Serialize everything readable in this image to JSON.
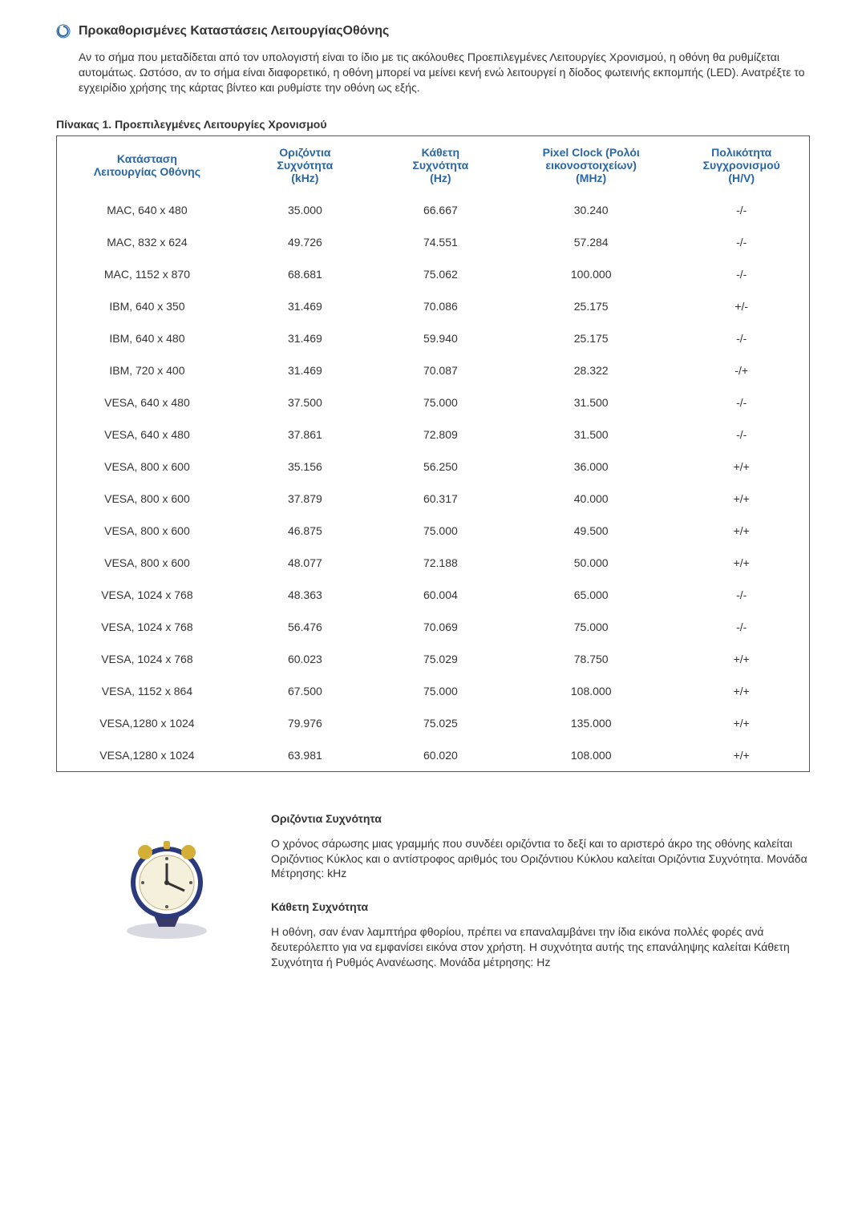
{
  "header": {
    "bullet_icon": "refresh-icon",
    "title": "Προκαθορισμένες Καταστάσεις ΛειτουργίαςΟθόνης"
  },
  "intro_text": "Αν το σήμα που μεταδίδεται από τον υπολογιστή είναι το ίδιο με τις ακόλουθες Προεπιλεγμένες Λειτουργίες Χρονισμού, η οθόνη θα ρυθμίζεται αυτομάτως. Ωστόσο, αν το σήμα είναι διαφορετικό, η οθόνη μπορεί να μείνει κενή ενώ λειτουργεί η δίοδος φωτεινής εκπομπής (LED). Ανατρέξτε το εγχειρίδιο χρήσης της κάρτας βίντεο και ρυθμίστε την οθόνη ως εξής.",
  "table": {
    "caption": "Πίνακας 1. Προεπιλεγμένες Λειτουργίες Χρονισμού",
    "columns": [
      "Κατάσταση Λειτουργίας Οθόνης",
      "Οριζόντια Συχνότητα (kHz)",
      "Κάθετη Συχνότητα (Hz)",
      "Pixel Clock (Ρολόι εικονοστοιχείων) (MHz)",
      "Πολικότητα Συγχρονισμού (H/V)"
    ],
    "col_heads": [
      {
        "l1": "Κατάσταση",
        "l2": "Λειτουργίας Οθόνης",
        "l3": ""
      },
      {
        "l1": "Οριζόντια",
        "l2": "Συχνότητα",
        "l3": "(kHz)"
      },
      {
        "l1": "Κάθετη",
        "l2": "Συχνότητα",
        "l3": "(Hz)"
      },
      {
        "l1": "Pixel Clock (Ρολόι",
        "l2": "εικονοστοιχείων)",
        "l3": "(MHz)"
      },
      {
        "l1": "Πολικότητα",
        "l2": "Συγχρονισμού",
        "l3": "(H/V)"
      }
    ],
    "rows": [
      [
        "MAC, 640 x 480",
        "35.000",
        "66.667",
        "30.240",
        "-/-"
      ],
      [
        "MAC, 832 x 624",
        "49.726",
        "74.551",
        "57.284",
        "-/-"
      ],
      [
        "MAC, 1152 x 870",
        "68.681",
        "75.062",
        "100.000",
        "-/-"
      ],
      [
        "IBM, 640 x 350",
        "31.469",
        "70.086",
        "25.175",
        "+/-"
      ],
      [
        "IBM, 640 x 480",
        "31.469",
        "59.940",
        "25.175",
        "-/-"
      ],
      [
        "IBM, 720 x 400",
        "31.469",
        "70.087",
        "28.322",
        "-/+"
      ],
      [
        "VESA, 640 x 480",
        "37.500",
        "75.000",
        "31.500",
        "-/-"
      ],
      [
        "VESA, 640 x 480",
        "37.861",
        "72.809",
        "31.500",
        "-/-"
      ],
      [
        "VESA, 800 x 600",
        "35.156",
        "56.250",
        "36.000",
        "+/+"
      ],
      [
        "VESA, 800 x 600",
        "37.879",
        "60.317",
        "40.000",
        "+/+"
      ],
      [
        "VESA, 800 x 600",
        "46.875",
        "75.000",
        "49.500",
        "+/+"
      ],
      [
        "VESA, 800 x 600",
        "48.077",
        "72.188",
        "50.000",
        "+/+"
      ],
      [
        "VESA, 1024 x 768",
        "48.363",
        "60.004",
        "65.000",
        "-/-"
      ],
      [
        "VESA, 1024 x 768",
        "56.476",
        "70.069",
        "75.000",
        "-/-"
      ],
      [
        "VESA, 1024 x 768",
        "60.023",
        "75.029",
        "78.750",
        "+/+"
      ],
      [
        "VESA, 1152 x 864",
        "67.500",
        "75.000",
        "108.000",
        "+/+"
      ],
      [
        "VESA,1280 x 1024",
        "79.976",
        "75.025",
        "135.000",
        "+/+"
      ],
      [
        "VESA,1280 x 1024",
        "63.981",
        "60.020",
        "108.000",
        "+/+"
      ]
    ],
    "header_color": "#2a66a5",
    "border_color": "#555555",
    "col_widths_pct": [
      24,
      18,
      18,
      22,
      18
    ]
  },
  "info": {
    "image_name": "clock-illustration",
    "sections": [
      {
        "heading": "Οριζόντια Συχνότητα",
        "text": "Ο χρόνος σάρωσης μιας γραμμής που συνδέει οριζόντια το δεξί και το αριστερό άκρο της οθόνης καλείται Οριζόντιος Κύκλος και ο αντίστροφος αριθμός του Οριζόντιου Κύκλου καλείται Οριζόντια Συχνότητα. Μονάδα Μέτρησης: kHz"
      },
      {
        "heading": "Κάθετη Συχνότητα",
        "text": "Η οθόνη, σαν έναν λαμπτήρα φθορίου, πρέπει να επαναλαμβάνει την ίδια εικόνα πολλές φορές ανά δευτερόλεπτο για να εμφανίσει εικόνα στον χρήστη. Η συχνότητα αυτής της επανάληψης καλείται Κάθετη Συχνότητα ή Ρυθμός Ανανέωσης. Μονάδα μέτρησης: Hz"
      }
    ]
  },
  "colors": {
    "page_background": "#ffffff",
    "text": "#333333",
    "accent": "#2a66a5"
  }
}
